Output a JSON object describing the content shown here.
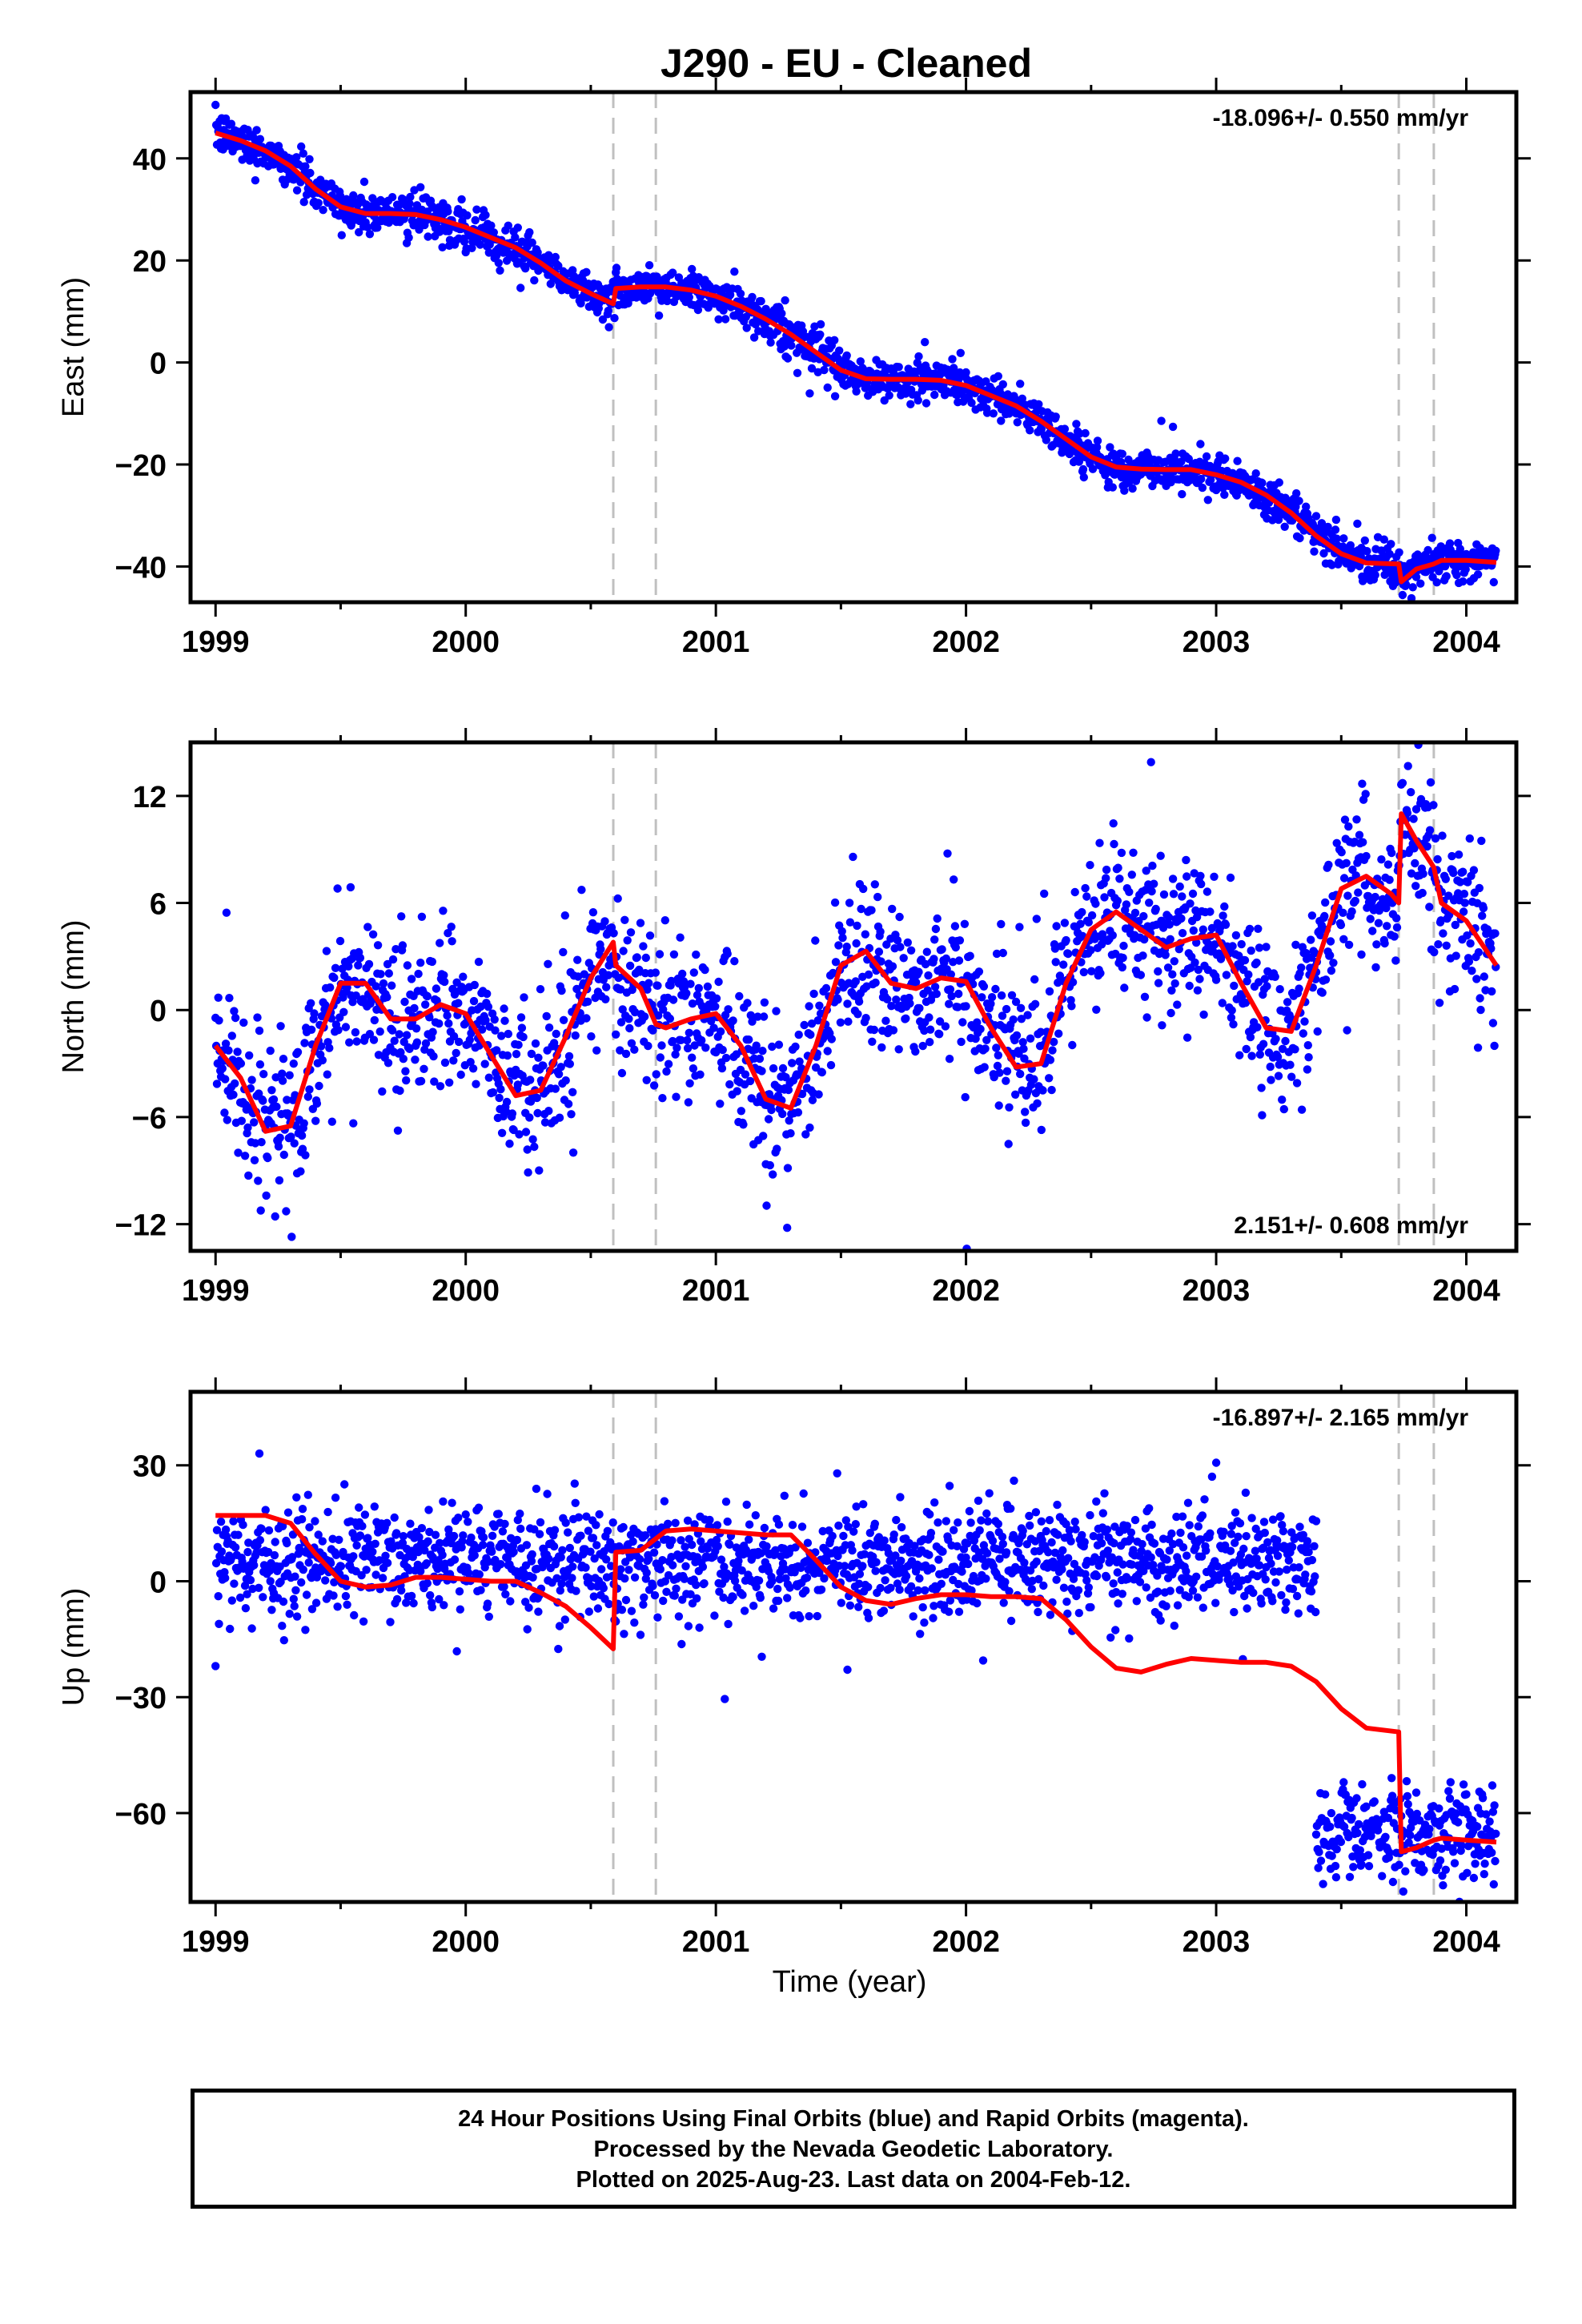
{
  "chart_data": [
    {
      "type": "scatter",
      "panel": "east",
      "title": "J290  - EU - Cleaned",
      "xlabel": "",
      "ylabel": "East (mm)",
      "xlim": [
        1998.9,
        2004.2
      ],
      "ylim": [
        -47,
        53
      ],
      "xticks": [
        1999,
        2000,
        2001,
        2002,
        2003,
        2004
      ],
      "xtick_labels": [
        "1999",
        "2000",
        "2001",
        "2002",
        "2003",
        "2004"
      ],
      "yticks": [
        -40,
        -20,
        0,
        20,
        40
      ],
      "ytick_labels": [
        "−40",
        "−20",
        "0",
        "20",
        "40"
      ],
      "rate_text": "-18.096+/- 0.550 mm/yr",
      "rate_position": "top-right",
      "series": [
        {
          "name": "",
          "color": "#0000ff",
          "kind": "points",
          "spread": 2.2,
          "x": [
            1999.0,
            2004.12
          ],
          "note_points": "dense daily positions scattered about the model curve"
        },
        {
          "name": "",
          "color": "#ff0000",
          "kind": "line",
          "x": [
            1999.0,
            1999.1,
            1999.2,
            1999.3,
            1999.4,
            1999.5,
            1999.6,
            1999.7,
            1999.8,
            1999.9,
            2000.0,
            2000.1,
            2000.2,
            2000.3,
            2000.4,
            2000.5,
            2000.59,
            2000.6,
            2000.7,
            2000.8,
            2000.9,
            2001.0,
            2001.1,
            2001.2,
            2001.3,
            2001.4,
            2001.5,
            2001.6,
            2001.7,
            2001.8,
            2001.9,
            2002.0,
            2002.1,
            2002.2,
            2002.3,
            2002.4,
            2002.5,
            2002.6,
            2002.7,
            2002.8,
            2002.9,
            2003.0,
            2003.1,
            2003.2,
            2003.3,
            2003.4,
            2003.5,
            2003.6,
            2003.73,
            2003.74,
            2003.8,
            2003.87,
            2003.9,
            2004.0,
            2004.12
          ],
          "y": [
            45,
            43.5,
            41.5,
            38.5,
            34,
            30.5,
            29.2,
            29.2,
            29,
            28,
            26.5,
            24.5,
            22.5,
            19.5,
            16,
            13.5,
            11.5,
            14.5,
            14.8,
            14.8,
            14.2,
            13,
            11,
            8.5,
            5.5,
            2,
            -1.5,
            -3.2,
            -3.3,
            -3.3,
            -3.5,
            -4.5,
            -6.5,
            -8.5,
            -11.5,
            -15,
            -18.5,
            -20.5,
            -20.9,
            -21,
            -21,
            -22,
            -23.5,
            -26,
            -29.5,
            -34,
            -37.5,
            -39.3,
            -39.5,
            -43,
            -40.5,
            -39.5,
            -38.8,
            -38.8,
            -39.2
          ]
        }
      ],
      "vlines": [
        2000.59,
        2000.76,
        2003.73,
        2003.87
      ],
      "vline_color": "#c0c0c0"
    },
    {
      "type": "scatter",
      "panel": "north",
      "xlabel": "",
      "ylabel": "North (mm)",
      "xlim": [
        1998.9,
        2004.2
      ],
      "ylim": [
        -13.5,
        15
      ],
      "xticks": [
        1999,
        2000,
        2001,
        2002,
        2003,
        2004
      ],
      "xtick_labels": [
        "1999",
        "2000",
        "2001",
        "2002",
        "2003",
        "2004"
      ],
      "yticks": [
        -12,
        -6,
        0,
        6,
        12
      ],
      "ytick_labels": [
        "−12",
        "−6",
        "0",
        "6",
        "12"
      ],
      "rate_text": "2.151+/- 0.608 mm/yr",
      "rate_position": "bottom-right",
      "series": [
        {
          "name": "",
          "color": "#0000ff",
          "kind": "points",
          "spread": 2.4,
          "x": [
            1999.0,
            2004.12
          ],
          "note_points": "dense daily positions scattered about the model curve"
        },
        {
          "name": "",
          "color": "#ff0000",
          "kind": "line",
          "x": [
            1999.0,
            1999.1,
            1999.2,
            1999.3,
            1999.4,
            1999.5,
            1999.6,
            1999.7,
            1999.8,
            1999.9,
            2000.0,
            2000.1,
            2000.2,
            2000.3,
            2000.4,
            2000.5,
            2000.59,
            2000.6,
            2000.7,
            2000.76,
            2000.8,
            2000.9,
            2001.0,
            2001.1,
            2001.2,
            2001.3,
            2001.4,
            2001.5,
            2001.6,
            2001.7,
            2001.8,
            2001.9,
            2002.0,
            2002.1,
            2002.2,
            2002.3,
            2002.4,
            2002.5,
            2002.6,
            2002.7,
            2002.8,
            2002.9,
            2003.0,
            2003.1,
            2003.2,
            2003.3,
            2003.4,
            2003.5,
            2003.6,
            2003.7,
            2003.73,
            2003.74,
            2003.8,
            2003.87,
            2003.9,
            2004.0,
            2004.12
          ],
          "y": [
            -2,
            -3.8,
            -6.8,
            -6.5,
            -2,
            1.5,
            1.5,
            -0.5,
            -0.5,
            0.3,
            -0.2,
            -2.5,
            -4.8,
            -4.5,
            -1.5,
            1.8,
            3.8,
            2.5,
            1.2,
            -0.8,
            -1,
            -0.5,
            -0.2,
            -2,
            -5,
            -5.5,
            -2,
            2.5,
            3.3,
            1.5,
            1.2,
            1.8,
            1.6,
            -1,
            -3.2,
            -3,
            1.5,
            4.5,
            5.5,
            4.5,
            3.5,
            4,
            4.2,
            1.5,
            -1,
            -1.2,
            2.5,
            6.8,
            7.5,
            6.5,
            6,
            11,
            9.5,
            8,
            6,
            5,
            2.5
          ]
        }
      ],
      "vlines": [
        2000.59,
        2000.76,
        2003.73,
        2003.87
      ],
      "vline_color": "#c0c0c0"
    },
    {
      "type": "scatter",
      "panel": "up",
      "xlabel": "Time (year)",
      "ylabel": "Up (mm)",
      "xlim": [
        1998.9,
        2004.2
      ],
      "ylim": [
        -83,
        49
      ],
      "xticks": [
        1999,
        2000,
        2001,
        2002,
        2003,
        2004
      ],
      "xtick_labels": [
        "1999",
        "2000",
        "2001",
        "2002",
        "2003",
        "2004"
      ],
      "yticks": [
        -60,
        -30,
        0,
        30
      ],
      "ytick_labels": [
        "−60",
        "−30",
        "0",
        "30"
      ],
      "rate_text": "-16.897+/- 2.165 mm/yr",
      "rate_position": "top-right",
      "series": [
        {
          "name": "",
          "color": "#0000ff",
          "kind": "points",
          "spread": 7.5,
          "segments": [
            {
              "x": [
                1999.0,
                2003.4
              ],
              "offset": 5
            },
            {
              "x": [
                2003.4,
                2004.12
              ],
              "offset": -65
            }
          ],
          "note_points": "dense daily positions; gap in model fit after mid-2003, points jump to about -65 mm"
        },
        {
          "name": "",
          "color": "#ff0000",
          "kind": "line",
          "x": [
            1999.0,
            1999.1,
            1999.2,
            1999.3,
            1999.4,
            1999.5,
            1999.6,
            1999.7,
            1999.8,
            1999.9,
            2000.0,
            2000.1,
            2000.2,
            2000.3,
            2000.4,
            2000.5,
            2000.59,
            2000.6,
            2000.7,
            2000.8,
            2000.9,
            2001.0,
            2001.1,
            2001.2,
            2001.3,
            2001.4,
            2001.5,
            2001.6,
            2001.7,
            2001.8,
            2001.9,
            2002.0,
            2002.1,
            2002.2,
            2002.3,
            2002.4,
            2002.5,
            2002.6,
            2002.7,
            2002.8,
            2002.9,
            2003.0,
            2003.1,
            2003.2,
            2003.3,
            2003.4,
            2003.5,
            2003.6,
            2003.73,
            2003.74,
            2003.8,
            2003.87,
            2003.9,
            2004.0,
            2004.12
          ],
          "y": [
            17,
            17,
            17,
            15,
            7,
            0,
            -1.5,
            -1,
            1,
            1,
            0.5,
            0,
            0,
            -3,
            -6.5,
            -12,
            -17.5,
            7.5,
            8,
            13,
            13.5,
            13,
            12.5,
            12,
            12,
            5.5,
            -1.5,
            -5,
            -6,
            -4.5,
            -3.5,
            -3.5,
            -4,
            -4,
            -4.5,
            -10,
            -17,
            -22.5,
            -23.5,
            -21.5,
            -20,
            -20.5,
            -21,
            -21,
            -22,
            -26,
            -33,
            -38,
            -39,
            -70,
            -69,
            -67,
            -66.5,
            -67,
            -67.5
          ]
        }
      ],
      "vlines": [
        2000.59,
        2000.76,
        2003.73,
        2003.87
      ],
      "vline_color": "#c0c0c0"
    }
  ],
  "footer": {
    "line1": "24 Hour Positions Using Final Orbits (blue) and Rapid Orbits (magenta).",
    "line2": "Processed by the Nevada Geodetic Laboratory.",
    "line3": "Plotted on 2025-Aug-23. Last data on 2004-Feb-12."
  }
}
